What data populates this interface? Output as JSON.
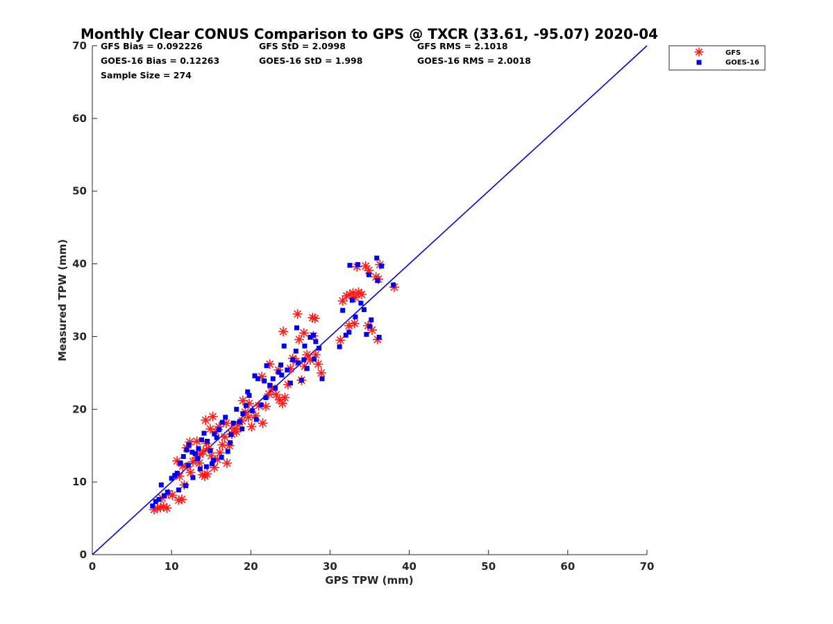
{
  "chart_data": {
    "type": "scatter",
    "title": "Monthly Clear CONUS Comparison to GPS @ TXCR (33.61, -95.07) 2020-04",
    "xlabel": "GPS TPW (mm)",
    "ylabel": "Measured TPW (mm)",
    "xlim": [
      0,
      70
    ],
    "ylim": [
      0,
      70
    ],
    "xticks": [
      "0",
      "10",
      "20",
      "30",
      "40",
      "50",
      "60",
      "70"
    ],
    "yticks": [
      "0",
      "10",
      "20",
      "30",
      "40",
      "50",
      "60",
      "70"
    ],
    "grid": false,
    "legend_position": "top-right",
    "stats": [
      "GFS Bias = 0.092226",
      "GFS StD = 2.0998",
      "GFS RMS = 2.1018",
      "GOES-16 Bias = 0.12263",
      "GOES-16 StD = 1.998",
      "GOES-16 RMS = 2.0018",
      "Sample Size = 274"
    ],
    "reference_line": {
      "x": [
        0,
        70
      ],
      "y": [
        0,
        70
      ],
      "color": "#0000dd"
    },
    "series": [
      {
        "name": "GFS",
        "marker": "asterisk",
        "color": "#ff1a1a",
        "points": [
          [
            7.8,
            6.2
          ],
          [
            8.2,
            6.4
          ],
          [
            8.6,
            6.5
          ],
          [
            9.0,
            6.6
          ],
          [
            9.4,
            6.4
          ],
          [
            8.8,
            7.8
          ],
          [
            9.6,
            8.4
          ],
          [
            10.1,
            8.2
          ],
          [
            10.9,
            7.5
          ],
          [
            11.3,
            7.6
          ],
          [
            11.6,
            9.6
          ],
          [
            11.0,
            10.8
          ],
          [
            11.4,
            12.2
          ],
          [
            10.7,
            12.9
          ],
          [
            12.0,
            12.1
          ],
          [
            12.4,
            11.3
          ],
          [
            12.7,
            12.8
          ],
          [
            13.1,
            13.3
          ],
          [
            13.5,
            12.6
          ],
          [
            13.9,
            11.0
          ],
          [
            14.2,
            10.8
          ],
          [
            14.5,
            11.1
          ],
          [
            13.6,
            13.8
          ],
          [
            14.0,
            14.2
          ],
          [
            14.4,
            15.3
          ],
          [
            14.7,
            14.6
          ],
          [
            15.0,
            13.6
          ],
          [
            15.4,
            12.0
          ],
          [
            15.8,
            13.1
          ],
          [
            16.1,
            14.0
          ],
          [
            16.4,
            15.1
          ],
          [
            16.7,
            16.2
          ],
          [
            17.0,
            12.6
          ],
          [
            17.3,
            15.0
          ],
          [
            17.6,
            16.6
          ],
          [
            17.9,
            17.3
          ],
          [
            14.3,
            18.5
          ],
          [
            15.2,
            19.0
          ],
          [
            16.0,
            17.6
          ],
          [
            18.4,
            17.9
          ],
          [
            18.9,
            18.4
          ],
          [
            19.3,
            19.6
          ],
          [
            19.7,
            18.9
          ],
          [
            20.1,
            17.6
          ],
          [
            20.6,
            19.1
          ],
          [
            21.0,
            20.5
          ],
          [
            21.5,
            18.1
          ],
          [
            21.9,
            20.4
          ],
          [
            22.3,
            22.1
          ],
          [
            22.7,
            22.9
          ],
          [
            23.2,
            22.0
          ],
          [
            23.6,
            21.3
          ],
          [
            24.0,
            20.8
          ],
          [
            24.3,
            21.6
          ],
          [
            24.7,
            23.4
          ],
          [
            25.0,
            25.6
          ],
          [
            25.3,
            27.0
          ],
          [
            25.7,
            26.6
          ],
          [
            26.1,
            29.6
          ],
          [
            26.4,
            24.0
          ],
          [
            26.8,
            25.9
          ],
          [
            27.1,
            27.5
          ],
          [
            27.5,
            26.8
          ],
          [
            27.9,
            30.1
          ],
          [
            28.2,
            27.5
          ],
          [
            28.5,
            26.2
          ],
          [
            28.9,
            25.0
          ],
          [
            24.1,
            30.7
          ],
          [
            25.9,
            33.1
          ],
          [
            27.8,
            32.6
          ],
          [
            28.1,
            32.5
          ],
          [
            26.7,
            30.5
          ],
          [
            31.3,
            29.5
          ],
          [
            31.6,
            34.9
          ],
          [
            32.1,
            35.6
          ],
          [
            32.5,
            35.8
          ],
          [
            32.9,
            36.0
          ],
          [
            33.2,
            35.4
          ],
          [
            33.6,
            36.1
          ],
          [
            34.0,
            35.8
          ],
          [
            33.4,
            39.6
          ],
          [
            34.5,
            39.7
          ],
          [
            34.9,
            39.1
          ],
          [
            35.3,
            30.9
          ],
          [
            34.8,
            31.5
          ],
          [
            33.1,
            31.8
          ],
          [
            32.4,
            31.5
          ],
          [
            35.8,
            38.2
          ],
          [
            36.1,
            37.9
          ],
          [
            36.3,
            39.9
          ],
          [
            36.0,
            29.6
          ],
          [
            38.1,
            36.8
          ],
          [
            21.4,
            24.5
          ],
          [
            19.8,
            20.8
          ],
          [
            22.4,
            26.2
          ],
          [
            23.5,
            25.4
          ],
          [
            12.3,
            15.5
          ],
          [
            11.9,
            14.7
          ],
          [
            13.2,
            15.6
          ],
          [
            16.9,
            18.1
          ],
          [
            18.2,
            16.9
          ],
          [
            15.6,
            16.9
          ],
          [
            14.9,
            17.3
          ],
          [
            19.0,
            21.2
          ]
        ]
      },
      {
        "name": "GOES-16",
        "marker": "square",
        "color": "#0000ee",
        "points": [
          [
            7.6,
            6.7
          ],
          [
            8.0,
            7.3
          ],
          [
            8.4,
            7.6
          ],
          [
            8.7,
            9.6
          ],
          [
            9.1,
            8.1
          ],
          [
            9.5,
            8.6
          ],
          [
            10.0,
            10.5
          ],
          [
            10.4,
            10.9
          ],
          [
            10.7,
            11.2
          ],
          [
            11.1,
            12.6
          ],
          [
            11.5,
            13.5
          ],
          [
            11.9,
            14.4
          ],
          [
            12.2,
            15.1
          ],
          [
            12.6,
            14.1
          ],
          [
            13.0,
            13.9
          ],
          [
            13.4,
            14.6
          ],
          [
            13.8,
            15.8
          ],
          [
            14.1,
            16.7
          ],
          [
            14.5,
            15.6
          ],
          [
            14.9,
            14.3
          ],
          [
            15.3,
            13.0
          ],
          [
            15.7,
            16.1
          ],
          [
            16.0,
            17.2
          ],
          [
            16.4,
            18.2
          ],
          [
            16.8,
            18.9
          ],
          [
            17.1,
            14.2
          ],
          [
            17.5,
            16.5
          ],
          [
            17.8,
            18.1
          ],
          [
            18.2,
            20.0
          ],
          [
            18.6,
            18.3
          ],
          [
            19.0,
            19.4
          ],
          [
            19.4,
            20.5
          ],
          [
            19.8,
            21.9
          ],
          [
            20.2,
            19.8
          ],
          [
            20.5,
            24.6
          ],
          [
            20.9,
            24.2
          ],
          [
            21.3,
            20.6
          ],
          [
            21.7,
            23.9
          ],
          [
            22.0,
            26.0
          ],
          [
            22.4,
            23.3
          ],
          [
            22.8,
            24.2
          ],
          [
            23.1,
            22.9
          ],
          [
            23.5,
            25.1
          ],
          [
            23.9,
            24.7
          ],
          [
            24.2,
            28.7
          ],
          [
            24.6,
            25.4
          ],
          [
            25.0,
            23.6
          ],
          [
            25.3,
            26.8
          ],
          [
            25.7,
            28.0
          ],
          [
            26.0,
            26.4
          ],
          [
            26.4,
            24.0
          ],
          [
            26.8,
            28.7
          ],
          [
            27.1,
            25.6
          ],
          [
            27.5,
            29.9
          ],
          [
            27.9,
            30.2
          ],
          [
            28.2,
            29.3
          ],
          [
            28.6,
            28.4
          ],
          [
            29.0,
            24.2
          ],
          [
            25.8,
            31.2
          ],
          [
            31.2,
            28.6
          ],
          [
            31.6,
            33.6
          ],
          [
            32.0,
            30.2
          ],
          [
            32.4,
            30.6
          ],
          [
            32.5,
            39.8
          ],
          [
            32.8,
            35.0
          ],
          [
            33.2,
            32.7
          ],
          [
            33.5,
            39.9
          ],
          [
            33.9,
            34.6
          ],
          [
            34.3,
            33.7
          ],
          [
            34.6,
            30.3
          ],
          [
            34.9,
            38.5
          ],
          [
            35.2,
            32.3
          ],
          [
            35.0,
            31.4
          ],
          [
            35.9,
            40.8
          ],
          [
            36.2,
            29.9
          ],
          [
            36.0,
            37.7
          ],
          [
            36.5,
            39.7
          ],
          [
            38.0,
            37.1
          ],
          [
            11.8,
            9.5
          ],
          [
            10.9,
            8.9
          ],
          [
            12.7,
            10.6
          ],
          [
            13.6,
            11.8
          ],
          [
            15.1,
            12.5
          ],
          [
            16.3,
            13.4
          ],
          [
            14.4,
            12.1
          ],
          [
            18.9,
            17.3
          ],
          [
            20.7,
            18.6
          ],
          [
            21.9,
            21.6
          ],
          [
            17.4,
            15.4
          ],
          [
            15.4,
            16.6
          ],
          [
            13.3,
            13.2
          ],
          [
            12.1,
            12.3
          ],
          [
            19.6,
            22.4
          ],
          [
            23.8,
            26.1
          ],
          [
            26.7,
            26.8
          ],
          [
            28.0,
            26.9
          ]
        ]
      }
    ]
  }
}
